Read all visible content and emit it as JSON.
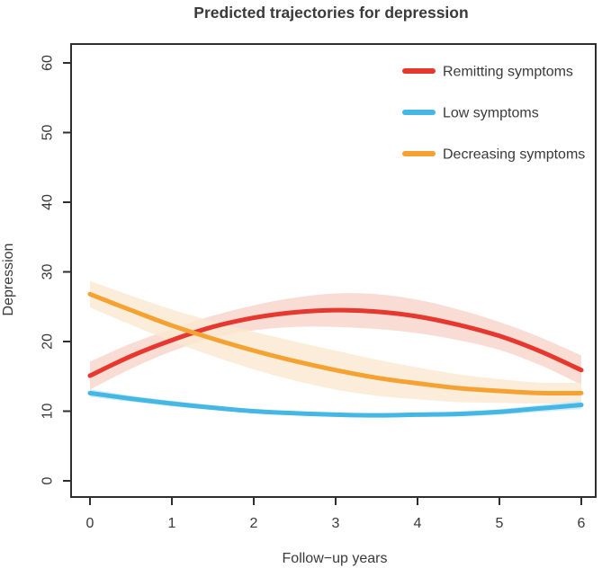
{
  "title": "Predicted trajectories for depression",
  "axes": {
    "x": {
      "label": "Follow−up years",
      "ticks": [
        0,
        1,
        2,
        3,
        4,
        5,
        6
      ],
      "range": [
        -0.23,
        6.18
      ]
    },
    "y": {
      "label": "Depression",
      "ticks": [
        0,
        10,
        20,
        30,
        40,
        50,
        60
      ],
      "range": [
        -2.3,
        62.8
      ]
    }
  },
  "legend": {
    "items": [
      {
        "label": "Remitting symptoms",
        "color": "#E6382E"
      },
      {
        "label": "Low symptoms",
        "color": "#45B7E5"
      },
      {
        "label": "Decreasing symptoms",
        "color": "#F5A233"
      }
    ]
  },
  "colors": {
    "axis": "#2e2e2e",
    "text": "#3a3a3a",
    "background": "#ffffff"
  },
  "chart_data": {
    "type": "line",
    "title": "Predicted trajectories for depression",
    "xlabel": "Follow−up years",
    "ylabel": "Depression",
    "xlim": [
      -0.23,
      6.18
    ],
    "ylim": [
      -2.3,
      62.8
    ],
    "grid": false,
    "legend_position": "top-right",
    "x": [
      0,
      0.5,
      1,
      1.5,
      2,
      2.5,
      3,
      3.5,
      4,
      4.5,
      5,
      5.5,
      6
    ],
    "series": [
      {
        "name": "Remitting symptoms",
        "color": "#E6382E",
        "band_color": "#F7D3C9",
        "values": [
          15.1,
          17.9,
          20.2,
          22.1,
          23.4,
          24.2,
          24.5,
          24.3,
          23.6,
          22.4,
          20.8,
          18.6,
          15.9
        ],
        "ci_half_width": [
          2.0,
          1.8,
          1.6,
          1.6,
          1.8,
          2.1,
          2.4,
          2.5,
          2.4,
          2.2,
          2.0,
          2.0,
          2.1
        ]
      },
      {
        "name": "Decreasing symptoms",
        "color": "#F5A233",
        "band_color": "#FAE9CF",
        "values": [
          26.8,
          24.5,
          22.3,
          20.4,
          18.7,
          17.2,
          15.9,
          14.8,
          14.0,
          13.3,
          12.9,
          12.6,
          12.6
        ],
        "ci_half_width": [
          1.9,
          2.1,
          2.3,
          2.5,
          2.7,
          2.8,
          2.8,
          2.6,
          2.3,
          2.0,
          1.7,
          1.5,
          1.5
        ]
      },
      {
        "name": "Low symptoms",
        "color": "#45B7E5",
        "band_color": "#C4E8F8",
        "values": [
          12.6,
          11.8,
          11.1,
          10.5,
          10.0,
          9.7,
          9.5,
          9.4,
          9.5,
          9.6,
          9.9,
          10.4,
          10.9
        ],
        "ci_half_width": [
          0.55,
          0.45,
          0.4,
          0.35,
          0.3,
          0.3,
          0.3,
          0.3,
          0.3,
          0.35,
          0.4,
          0.5,
          0.6
        ]
      }
    ]
  }
}
